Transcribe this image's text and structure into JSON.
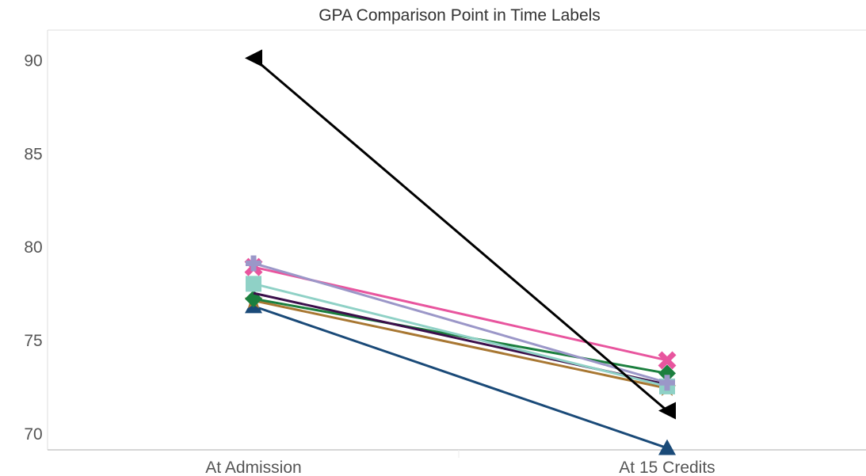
{
  "chart_data": {
    "type": "line",
    "title": "GPA Comparison Point in Time Labels",
    "xlabel": "",
    "ylabel": "",
    "categories": [
      "At Admission",
      "At 15 Credits"
    ],
    "ylim": [
      69.1,
      91.6
    ],
    "yticks": [
      70,
      75,
      80,
      85,
      90
    ],
    "grid": false,
    "series": [
      {
        "values": [
          90.1,
          71.2
        ],
        "color": "#000000",
        "marker": "triangle-left"
      },
      {
        "values": [
          79.1,
          72.7
        ],
        "color": "#9b97c8",
        "marker": "plus"
      },
      {
        "values": [
          78.9,
          73.9
        ],
        "color": "#e8559e",
        "marker": "x"
      },
      {
        "values": [
          78.0,
          72.5
        ],
        "color": "#8fd1c6",
        "marker": "square"
      },
      {
        "values": [
          77.5,
          72.6
        ],
        "color": "#3b0f4a",
        "marker": "none"
      },
      {
        "values": [
          77.2,
          73.2
        ],
        "color": "#1b7f3e",
        "marker": "diamond"
      },
      {
        "values": [
          77.1,
          72.4
        ],
        "color": "#a87732",
        "marker": "star"
      },
      {
        "values": [
          76.8,
          69.2
        ],
        "color": "#1a4a78",
        "marker": "triangle-up"
      }
    ]
  }
}
